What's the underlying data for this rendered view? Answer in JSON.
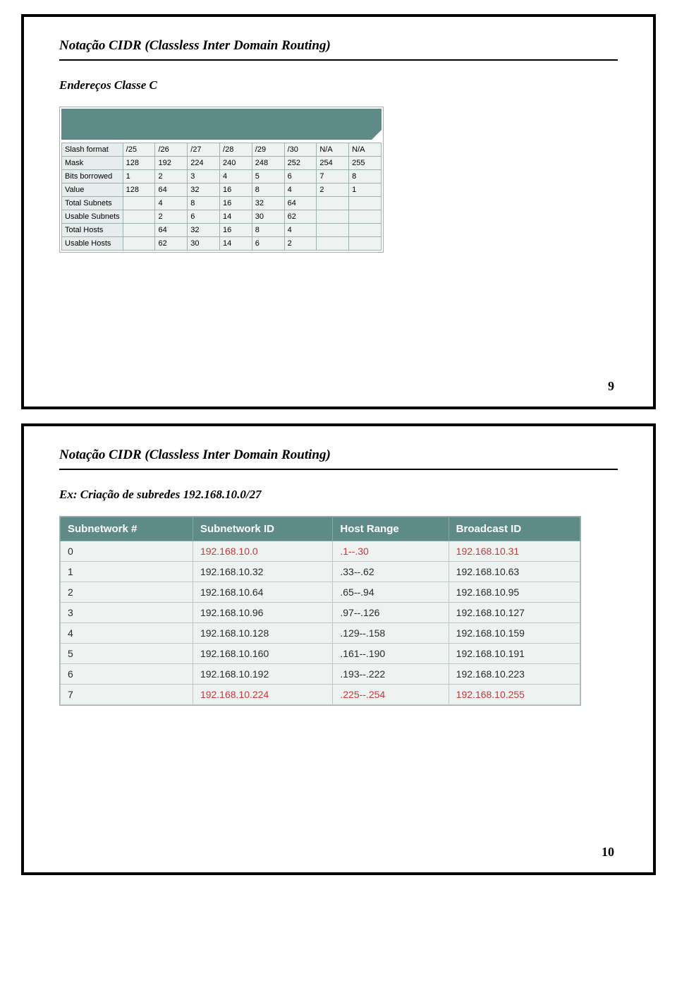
{
  "frame1": {
    "title": "Notação CIDR (Classless Inter Domain Routing)",
    "subtitle": "Endereços Classe C",
    "pagenum": "9",
    "table": {
      "rows": [
        {
          "label": "Slash  format",
          "cells": [
            "/25",
            "/26",
            "/27",
            "/28",
            "/29",
            "/30",
            "N/A",
            "N/A"
          ]
        },
        {
          "label": "Mask",
          "cells": [
            "128",
            "192",
            "224",
            "240",
            "248",
            "252",
            "254",
            "255"
          ]
        },
        {
          "label": "Bits borrowed",
          "cells": [
            "1",
            "2",
            "3",
            "4",
            "5",
            "6",
            "7",
            "8"
          ]
        },
        {
          "label": "Value",
          "cells": [
            "128",
            "64",
            "32",
            "16",
            "8",
            "4",
            "2",
            "1"
          ]
        },
        {
          "label": "Total Subnets",
          "cells": [
            "",
            "4",
            "8",
            "16",
            "32",
            "64",
            "",
            ""
          ]
        },
        {
          "label": "Usable Subnets",
          "cells": [
            "",
            "2",
            "6",
            "14",
            "30",
            "62",
            "",
            ""
          ]
        },
        {
          "label": "Total Hosts",
          "cells": [
            "",
            "64",
            "32",
            "16",
            "8",
            "4",
            "",
            ""
          ]
        },
        {
          "label": "Usable Hosts",
          "cells": [
            "",
            "62",
            "30",
            "14",
            "6",
            "2",
            "",
            ""
          ]
        }
      ]
    }
  },
  "frame2": {
    "title": "Notação CIDR (Classless Inter Domain Routing)",
    "subtitle": "Ex: Criação de subredes 192.168.10.0/27",
    "pagenum": "10",
    "table": {
      "headers": [
        "Subnetwork #",
        "Subnetwork ID",
        "Host Range",
        "Broadcast ID"
      ],
      "rows": [
        {
          "n": "0",
          "id": "192.168.10.0",
          "range": ".1--.30",
          "bc": "192.168.10.31",
          "red": true
        },
        {
          "n": "1",
          "id": "192.168.10.32",
          "range": ".33--.62",
          "bc": "192.168.10.63",
          "red": false
        },
        {
          "n": "2",
          "id": "192.168.10.64",
          "range": ".65--.94",
          "bc": "192.168.10.95",
          "red": false
        },
        {
          "n": "3",
          "id": "192.168.10.96",
          "range": ".97--.126",
          "bc": "192.168.10.127",
          "red": false
        },
        {
          "n": "4",
          "id": "192.168.10.128",
          "range": ".129--.158",
          "bc": "192.168.10.159",
          "red": false
        },
        {
          "n": "5",
          "id": "192.168.10.160",
          "range": ".161--.190",
          "bc": "192.168.10.191",
          "red": false
        },
        {
          "n": "6",
          "id": "192.168.10.192",
          "range": ".193--.222",
          "bc": "192.168.10.223",
          "red": false
        },
        {
          "n": "7",
          "id": "192.168.10.224",
          "range": ".225--.254",
          "bc": "192.168.10.255",
          "red": true
        }
      ]
    }
  }
}
